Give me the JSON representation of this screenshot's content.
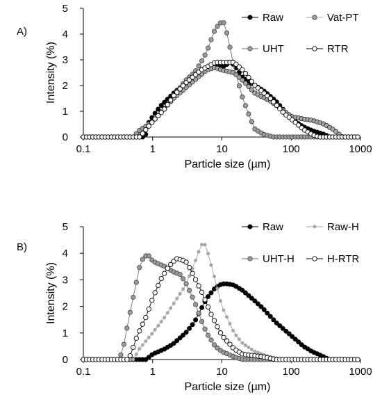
{
  "chart_data": [
    {
      "panel_label": "A)",
      "type": "scatter",
      "xlabel": "Particle size (µm)",
      "ylabel": "Intensity (%)",
      "xscale": "log",
      "xlim": [
        0.1,
        1000
      ],
      "ylim": [
        0,
        5
      ],
      "x_ticks": [
        "0.1",
        "1",
        "10",
        "100",
        "1000"
      ],
      "y_ticks": [
        "0",
        "1",
        "2",
        "3",
        "4",
        "5"
      ],
      "legend_position": "top-right",
      "series": [
        {
          "name": "Raw",
          "color": "#000000",
          "marker": "filled-circle",
          "points": [
            [
              0.78,
              0
            ],
            [
              0.85,
              0.5
            ],
            [
              1.0,
              0.8
            ],
            [
              1.3,
              1.2
            ],
            [
              2,
              1.7
            ],
            [
              3,
              2.1
            ],
            [
              5,
              2.6
            ],
            [
              8,
              2.8
            ],
            [
              10,
              2.7
            ],
            [
              13,
              2.9
            ],
            [
              15,
              2.8
            ],
            [
              20,
              2.3
            ],
            [
              30,
              2.0
            ],
            [
              40,
              1.8
            ],
            [
              60,
              1.4
            ],
            [
              100,
              0.7
            ],
            [
              150,
              0.4
            ],
            [
              200,
              0.25
            ],
            [
              300,
              0.1
            ],
            [
              360,
              0
            ]
          ]
        },
        {
          "name": "Vat-PT",
          "color": "#a6a6a6",
          "marker": "filled-circle",
          "points": [
            [
              0.6,
              0
            ],
            [
              0.7,
              0.1
            ],
            [
              1.0,
              0.6
            ],
            [
              2,
              1.5
            ],
            [
              4,
              2.2
            ],
            [
              6,
              2.6
            ],
            [
              8,
              2.7
            ],
            [
              10,
              2.6
            ],
            [
              15,
              2.5
            ],
            [
              20,
              2.2
            ],
            [
              30,
              1.7
            ],
            [
              50,
              1.4
            ],
            [
              80,
              1.0
            ],
            [
              100,
              0.8
            ],
            [
              150,
              0.7
            ],
            [
              200,
              0.65
            ],
            [
              300,
              0.5
            ],
            [
              400,
              0.3
            ],
            [
              550,
              0
            ]
          ]
        },
        {
          "name": "UHT",
          "color": "#6e6e6e",
          "marker": "gray-circle",
          "points": [
            [
              0.55,
              0
            ],
            [
              0.6,
              0.2
            ],
            [
              1.0,
              0.6
            ],
            [
              1.5,
              1.1
            ],
            [
              2,
              1.6
            ],
            [
              3,
              2.2
            ],
            [
              4,
              2.5
            ],
            [
              5,
              2.9
            ],
            [
              6,
              3.3
            ],
            [
              8,
              4.2
            ],
            [
              10,
              4.5
            ],
            [
              11,
              4.4
            ],
            [
              13,
              3.5
            ],
            [
              15,
              2.7
            ],
            [
              20,
              1.5
            ],
            [
              25,
              0.8
            ],
            [
              30,
              0.3
            ],
            [
              40,
              0.1
            ],
            [
              55,
              0
            ]
          ]
        },
        {
          "name": "RTR",
          "color": "#000000",
          "marker": "open-circle",
          "points": [
            [
              0.65,
              0
            ],
            [
              0.75,
              0.2
            ],
            [
              1.0,
              0.6
            ],
            [
              1.5,
              1.1
            ],
            [
              2,
              1.6
            ],
            [
              3,
              2.1
            ],
            [
              5,
              2.6
            ],
            [
              8,
              2.9
            ],
            [
              10,
              2.9
            ],
            [
              15,
              2.9
            ],
            [
              20,
              2.6
            ],
            [
              30,
              2.0
            ],
            [
              50,
              1.5
            ],
            [
              80,
              0.9
            ],
            [
              100,
              0.7
            ],
            [
              150,
              0.3
            ],
            [
              200,
              0.1
            ],
            [
              250,
              0
            ]
          ]
        }
      ]
    },
    {
      "panel_label": "B)",
      "type": "scatter",
      "xlabel": "Particle size (µm)",
      "ylabel": "Intensity (%)",
      "xscale": "log",
      "xlim": [
        0.1,
        1000
      ],
      "ylim": [
        0,
        5
      ],
      "x_ticks": [
        "0.1",
        "1",
        "10",
        "100",
        "1000"
      ],
      "y_ticks": [
        "0",
        "1",
        "2",
        "3",
        "4",
        "5"
      ],
      "legend_position": "top-right",
      "series": [
        {
          "name": "Raw",
          "color": "#000000",
          "marker": "filled-circle",
          "points": [
            [
              0.8,
              0
            ],
            [
              1.0,
              0.2
            ],
            [
              1.5,
              0.4
            ],
            [
              2,
              0.6
            ],
            [
              3,
              1.0
            ],
            [
              4,
              1.4
            ],
            [
              5,
              1.9
            ],
            [
              6,
              2.3
            ],
            [
              8,
              2.7
            ],
            [
              10,
              2.85
            ],
            [
              12,
              2.85
            ],
            [
              15,
              2.8
            ],
            [
              20,
              2.6
            ],
            [
              30,
              2.2
            ],
            [
              40,
              1.9
            ],
            [
              60,
              1.4
            ],
            [
              100,
              0.9
            ],
            [
              150,
              0.5
            ],
            [
              200,
              0.3
            ],
            [
              300,
              0.1
            ],
            [
              350,
              0
            ]
          ]
        },
        {
          "name": "Raw-H",
          "color": "#a6a6a6",
          "marker": "small-filled-circle",
          "points": [
            [
              0.55,
              0
            ],
            [
              0.6,
              0.3
            ],
            [
              0.8,
              0.7
            ],
            [
              1.0,
              1.0
            ],
            [
              1.5,
              1.6
            ],
            [
              2,
              2.1
            ],
            [
              3,
              2.8
            ],
            [
              4,
              3.6
            ],
            [
              5,
              4.3
            ],
            [
              5.5,
              4.4
            ],
            [
              6,
              4.2
            ],
            [
              8,
              3.0
            ],
            [
              10,
              2.0
            ],
            [
              15,
              1.0
            ],
            [
              20,
              0.6
            ],
            [
              30,
              0.3
            ],
            [
              50,
              0.1
            ],
            [
              80,
              0
            ]
          ]
        },
        {
          "name": "UHT-H",
          "color": "#6e6e6e",
          "marker": "gray-circle",
          "points": [
            [
              0.33,
              0
            ],
            [
              0.38,
              0.5
            ],
            [
              0.45,
              1.5
            ],
            [
              0.55,
              2.6
            ],
            [
              0.65,
              3.5
            ],
            [
              0.75,
              3.9
            ],
            [
              0.9,
              3.9
            ],
            [
              1.0,
              3.7
            ],
            [
              1.5,
              3.5
            ],
            [
              2,
              3.3
            ],
            [
              2.5,
              3.2
            ],
            [
              3,
              2.9
            ],
            [
              4,
              2.2
            ],
            [
              5,
              1.5
            ],
            [
              6,
              1.0
            ],
            [
              8,
              0.5
            ],
            [
              10,
              0.3
            ],
            [
              15,
              0.1
            ],
            [
              20,
              0
            ]
          ]
        },
        {
          "name": "H-RTR",
          "color": "#000000",
          "marker": "open-circle",
          "points": [
            [
              0.45,
              0
            ],
            [
              0.5,
              0.3
            ],
            [
              0.6,
              0.9
            ],
            [
              0.8,
              1.6
            ],
            [
              1.0,
              2.3
            ],
            [
              1.3,
              3.0
            ],
            [
              1.7,
              3.5
            ],
            [
              2.2,
              3.8
            ],
            [
              3,
              3.7
            ],
            [
              3.5,
              3.4
            ],
            [
              5,
              2.6
            ],
            [
              7,
              1.7
            ],
            [
              10,
              0.9
            ],
            [
              15,
              0.4
            ],
            [
              20,
              0.2
            ],
            [
              40,
              0.1
            ],
            [
              60,
              0
            ]
          ]
        }
      ]
    }
  ]
}
